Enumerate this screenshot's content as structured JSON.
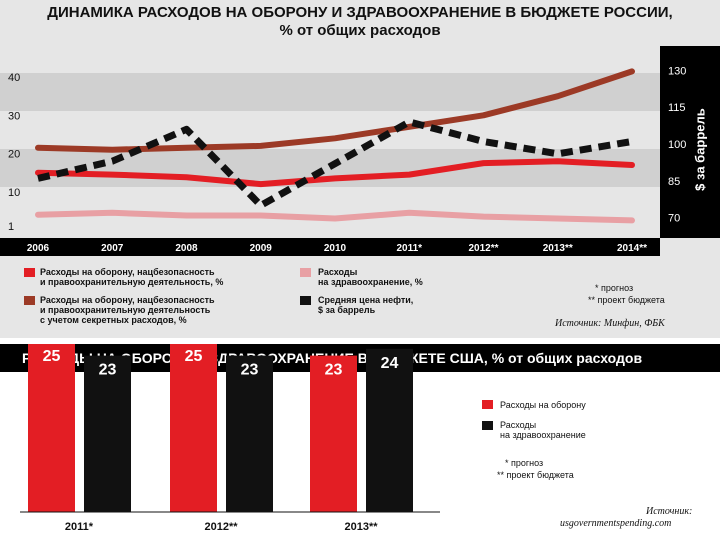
{
  "top": {
    "title_line1": "ДИНАМИКА РАСХОДОВ НА ОБОРОНУ И ЗДРАВООХРАНЕНИЕ В БЮДЖЕТЕ РОССИИ,",
    "title_line2": "% от общих расходов",
    "right_axis_label": "$ за баррель",
    "legend": [
      {
        "label_line1": "Расходы на оборону, нацбезопасность",
        "label_line2": "и правоохранительную деятельность, %",
        "label_line3": "",
        "color": "#e31e24"
      },
      {
        "label_line1": "Расходы на оборону, нацбезопасность",
        "label_line2": "и правоохранительную деятельность",
        "label_line3": "с учетом секретных расходов, %",
        "color": "#9c3a26"
      },
      {
        "label_line1": "Расходы",
        "label_line2": "на здравоохранение, %",
        "label_line3": "",
        "color": "#e8a0a4"
      },
      {
        "label_line1": "Средняя цена нефти,",
        "label_line2": "$ за баррель",
        "label_line3": "",
        "color": "#111111"
      }
    ],
    "notes": [
      "* прогноз",
      "** проект бюджета"
    ],
    "source": "Источник: Минфин, ФБК"
  },
  "bottom": {
    "title": "РАСХОДЫ НА ОБОРОНУ И ЗДРАВООХРАНЕНИЕ В БЮДЖЕТЕ США, % от общих расходов",
    "legend": [
      {
        "label_line1": "Расходы на оборону",
        "label_line2": "",
        "color": "#e31e24"
      },
      {
        "label_line1": "Расходы",
        "label_line2": "на здравоохранение",
        "color": "#111111"
      }
    ],
    "notes": [
      "* прогноз",
      "** проект бюджета"
    ],
    "source_line1": "Источник:",
    "source_line2": "usgovernmentspending.com"
  },
  "chart_data": [
    {
      "type": "line",
      "x": [
        "2006",
        "2007",
        "2008",
        "2009",
        "2010",
        "2011*",
        "2012**",
        "2013**",
        "2014**"
      ],
      "ylim": [
        0,
        45
      ],
      "yticks": [
        1,
        10,
        20,
        30,
        40
      ],
      "y2lim": [
        65,
        135
      ],
      "y2ticks": [
        70,
        85,
        100,
        115,
        130
      ],
      "grid": true,
      "series": [
        {
          "name": "Расходы на оборону, нацбезопасность и правоохранительную деятельность, %",
          "axis": "left",
          "color": "#e31e24",
          "style": "solid",
          "values": [
            15,
            14.5,
            13.8,
            12,
            13.5,
            14.5,
            17.5,
            18,
            17
          ]
        },
        {
          "name": "Расходы на оборону, нацбезопасность и правоохранительную деятельность с учетом секретных расходов, %",
          "axis": "left",
          "color": "#9c3a26",
          "style": "solid",
          "values": [
            21.5,
            21,
            21.5,
            22,
            24,
            27,
            30,
            35,
            41.5
          ]
        },
        {
          "name": "Расходы на здравоохранение, %",
          "axis": "left",
          "color": "#e8a0a4",
          "style": "solid",
          "values": [
            4,
            4.5,
            3.8,
            3.8,
            3,
            4.5,
            3.5,
            3,
            2.5
          ]
        },
        {
          "name": "Средняя цена нефти, $ за баррель",
          "axis": "right",
          "color": "#111111",
          "style": "dashed",
          "values": [
            86,
            93,
            106,
            75,
            92,
            109,
            101,
            96,
            101
          ]
        }
      ]
    },
    {
      "type": "bar",
      "categories": [
        "2011*",
        "2012**",
        "2013**"
      ],
      "series": [
        {
          "name": "Расходы на оборону",
          "color": "#e31e24",
          "values": [
            25,
            25,
            23
          ]
        },
        {
          "name": "Расходы на здравоохранение",
          "color": "#111111",
          "values": [
            23,
            23,
            24
          ]
        }
      ]
    }
  ]
}
